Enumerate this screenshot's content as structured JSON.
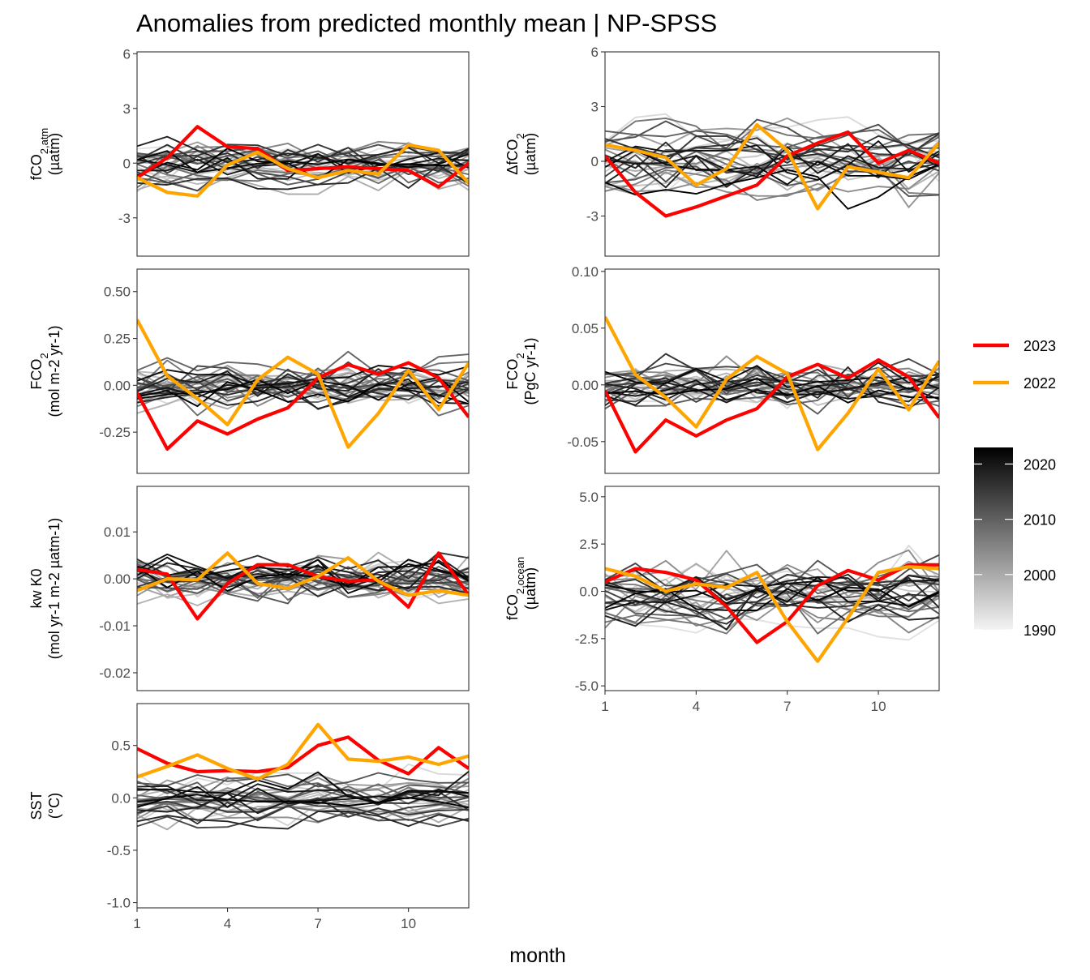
{
  "title": "Anomalies from predicted monthly mean | NP-SPSS",
  "xlabel": "month",
  "legend_lines": [
    {
      "label": "2023",
      "color": "#ff0000"
    },
    {
      "label": "2022",
      "color": "#ffa500"
    }
  ],
  "colorbar": {
    "ticks": [
      "2020",
      "2010",
      "2000",
      "1990"
    ],
    "values": [
      2020,
      2010,
      2000,
      1990
    ],
    "range": [
      1990,
      2023
    ]
  },
  "chart_data": [
    {
      "type": "line",
      "ylabel": [
        "fCO",
        "2,atm",
        "(µatm)"
      ],
      "xticks": [
        "1",
        "4",
        "7",
        "10"
      ],
      "xlim": [
        1,
        12
      ],
      "yticks": [
        "6",
        "3",
        "0",
        "-3"
      ],
      "ytick_values": [
        6,
        3,
        0,
        -3
      ],
      "ylim": [
        -5.1,
        6.1
      ],
      "series": [
        {
          "name": "2023",
          "x": [
            1,
            2,
            3,
            4,
            5,
            6,
            7,
            8,
            9,
            10,
            11,
            12
          ],
          "values": [
            -0.8,
            0.3,
            2.0,
            0.9,
            0.8,
            -0.4,
            -0.3,
            -0.2,
            -0.3,
            -0.4,
            -1.3,
            0.0
          ]
        },
        {
          "name": "2022",
          "x": [
            1,
            2,
            3,
            4,
            5,
            6,
            7,
            8,
            9,
            10,
            11,
            12
          ],
          "values": [
            -0.8,
            -1.6,
            -1.8,
            -0.1,
            0.6,
            -0.3,
            -0.8,
            -0.4,
            -0.6,
            1.0,
            0.7,
            -1.1
          ]
        }
      ],
      "background_spread": 1.2,
      "background_noise": 1.0
    },
    {
      "type": "line",
      "ylabel": [
        "ΔfCO",
        "2",
        "(µatm)"
      ],
      "xticks": [
        "1",
        "4",
        "7",
        "10"
      ],
      "xlim": [
        1,
        12
      ],
      "yticks": [
        "6",
        "3",
        "0",
        "-3"
      ],
      "ytick_values": [
        6,
        3,
        0,
        -3
      ],
      "ylim": [
        -5.2,
        6.0
      ],
      "series": [
        {
          "name": "2023",
          "x": [
            1,
            2,
            3,
            4,
            5,
            6,
            7,
            8,
            9,
            10,
            11,
            12
          ],
          "values": [
            0.3,
            -1.7,
            -3.0,
            -2.5,
            -1.9,
            -1.3,
            0.3,
            1.0,
            1.6,
            -0.1,
            0.6,
            -0.1
          ]
        },
        {
          "name": "2022",
          "x": [
            1,
            2,
            3,
            4,
            5,
            6,
            7,
            8,
            9,
            10,
            11,
            12
          ],
          "values": [
            0.9,
            0.6,
            0.2,
            -1.3,
            -0.4,
            2.0,
            0.6,
            -2.6,
            -0.3,
            -0.6,
            -0.9,
            1.0
          ]
        }
      ],
      "background_spread": 1.8,
      "background_noise": 1.5
    },
    {
      "type": "line",
      "ylabel": [
        "FCO",
        "2",
        "(mol m-2 yr-1)"
      ],
      "xticks": [
        "1",
        "4",
        "7",
        "10"
      ],
      "xlim": [
        1,
        12
      ],
      "yticks": [
        "0.50",
        "0.25",
        "0.00",
        "-0.25"
      ],
      "ytick_values": [
        0.5,
        0.25,
        0.0,
        -0.25
      ],
      "ylim": [
        -0.47,
        0.62
      ],
      "series": [
        {
          "name": "2023",
          "x": [
            1,
            2,
            3,
            4,
            5,
            6,
            7,
            8,
            9,
            10,
            11,
            12
          ],
          "values": [
            -0.04,
            -0.34,
            -0.19,
            -0.26,
            -0.18,
            -0.12,
            0.04,
            0.11,
            0.06,
            0.12,
            0.04,
            -0.17
          ]
        },
        {
          "name": "2022",
          "x": [
            1,
            2,
            3,
            4,
            5,
            6,
            7,
            8,
            9,
            10,
            11,
            12
          ],
          "values": [
            0.35,
            0.05,
            -0.07,
            -0.21,
            0.03,
            0.15,
            0.06,
            -0.33,
            -0.15,
            0.08,
            -0.13,
            0.12
          ]
        }
      ],
      "background_spread": 0.1,
      "background_noise": 0.12
    },
    {
      "type": "line",
      "ylabel": [
        "FCO",
        "2",
        "(PgC yr-1)"
      ],
      "xticks": [
        "1",
        "4",
        "7",
        "10"
      ],
      "xlim": [
        1,
        12
      ],
      "yticks": [
        "0.10",
        "0.05",
        "0.00",
        "-0.05"
      ],
      "ytick_values": [
        0.1,
        0.05,
        0.0,
        -0.05
      ],
      "ylim": [
        -0.078,
        0.102
      ],
      "series": [
        {
          "name": "2023",
          "x": [
            1,
            2,
            3,
            4,
            5,
            6,
            7,
            8,
            9,
            10,
            11,
            12
          ],
          "values": [
            -0.005,
            -0.059,
            -0.031,
            -0.045,
            -0.031,
            -0.021,
            0.007,
            0.018,
            0.006,
            0.022,
            0.007,
            -0.029
          ]
        },
        {
          "name": "2022",
          "x": [
            1,
            2,
            3,
            4,
            5,
            6,
            7,
            8,
            9,
            10,
            11,
            12
          ],
          "values": [
            0.06,
            0.009,
            -0.011,
            -0.037,
            0.005,
            0.025,
            0.01,
            -0.057,
            -0.025,
            0.014,
            -0.022,
            0.021
          ]
        }
      ],
      "background_spread": 0.017,
      "background_noise": 0.02
    },
    {
      "type": "line",
      "ylabel": [
        "kw K0",
        "",
        "(mol yr-1 m-2 µatm-1)"
      ],
      "xticks": [
        "1",
        "4",
        "7",
        "10"
      ],
      "xlim": [
        1,
        12
      ],
      "yticks": [
        "0.01",
        "0.00",
        "-0.01",
        "-0.02"
      ],
      "ytick_values": [
        0.01,
        0.0,
        -0.01,
        -0.02
      ],
      "ylim": [
        -0.0238,
        0.0197
      ],
      "series": [
        {
          "name": "2023",
          "x": [
            1,
            2,
            3,
            4,
            5,
            6,
            7,
            8,
            9,
            10,
            11,
            12
          ],
          "values": [
            0.002,
            0.001,
            -0.0085,
            -0.001,
            0.003,
            0.003,
            0.0005,
            -0.0005,
            -0.0002,
            -0.006,
            0.0055,
            -0.0035
          ]
        },
        {
          "name": "2022",
          "x": [
            1,
            2,
            3,
            4,
            5,
            6,
            7,
            8,
            9,
            10,
            11,
            12
          ],
          "values": [
            -0.0025,
            0.0,
            -0.0002,
            0.0055,
            -0.001,
            -0.002,
            0.0005,
            0.0045,
            -0.0005,
            -0.0035,
            -0.0025,
            -0.0035
          ]
        }
      ],
      "background_spread": 0.002,
      "background_noise": 0.005
    },
    {
      "type": "line",
      "ylabel": [
        "fCO",
        "2,ocean",
        "(µatm)"
      ],
      "xticks": [
        "1",
        "4",
        "7",
        "10"
      ],
      "xlim": [
        1,
        12
      ],
      "yticks": [
        "5.0",
        "2.5",
        "0.0",
        "-2.5",
        "-5.0"
      ],
      "ytick_values": [
        5.0,
        2.5,
        0.0,
        -2.5,
        -5.0
      ],
      "ylim": [
        -5.25,
        5.55
      ],
      "series": [
        {
          "name": "2023",
          "x": [
            1,
            2,
            3,
            4,
            5,
            6,
            7,
            8,
            9,
            10,
            11,
            12
          ],
          "values": [
            0.5,
            1.2,
            1.0,
            0.6,
            -0.8,
            -2.7,
            -1.6,
            0.3,
            1.1,
            0.6,
            1.4,
            1.4
          ]
        },
        {
          "name": "2022",
          "x": [
            1,
            2,
            3,
            4,
            5,
            6,
            7,
            8,
            9,
            10,
            11,
            12
          ],
          "values": [
            1.2,
            0.8,
            0.0,
            0.4,
            0.2,
            1.0,
            -1.6,
            -3.7,
            -1.4,
            1.0,
            1.3,
            1.2
          ]
        }
      ],
      "background_spread": 1.5,
      "background_noise": 1.5
    },
    {
      "type": "line",
      "ylabel": [
        "SST",
        "",
        "(°C)"
      ],
      "xticks": [
        "1",
        "4",
        "7",
        "10"
      ],
      "xlim": [
        1,
        12
      ],
      "yticks": [
        "0.5",
        "0.0",
        "-0.5",
        "-1.0"
      ],
      "ytick_values": [
        0.5,
        0.0,
        -0.5,
        -1.0
      ],
      "ylim": [
        -1.05,
        0.9
      ],
      "series": [
        {
          "name": "2023",
          "x": [
            1,
            2,
            3,
            4,
            5,
            6,
            7,
            8,
            9,
            10,
            11,
            12
          ],
          "values": [
            0.47,
            0.33,
            0.25,
            0.26,
            0.25,
            0.29,
            0.5,
            0.58,
            0.36,
            0.23,
            0.48,
            0.28
          ]
        },
        {
          "name": "2022",
          "x": [
            1,
            2,
            3,
            4,
            5,
            6,
            7,
            8,
            9,
            10,
            11,
            12
          ],
          "values": [
            0.2,
            0.3,
            0.41,
            0.28,
            0.18,
            0.32,
            0.7,
            0.37,
            0.35,
            0.39,
            0.32,
            0.4
          ]
        }
      ],
      "background_spread": 0.25,
      "background_noise": 0.18
    }
  ]
}
